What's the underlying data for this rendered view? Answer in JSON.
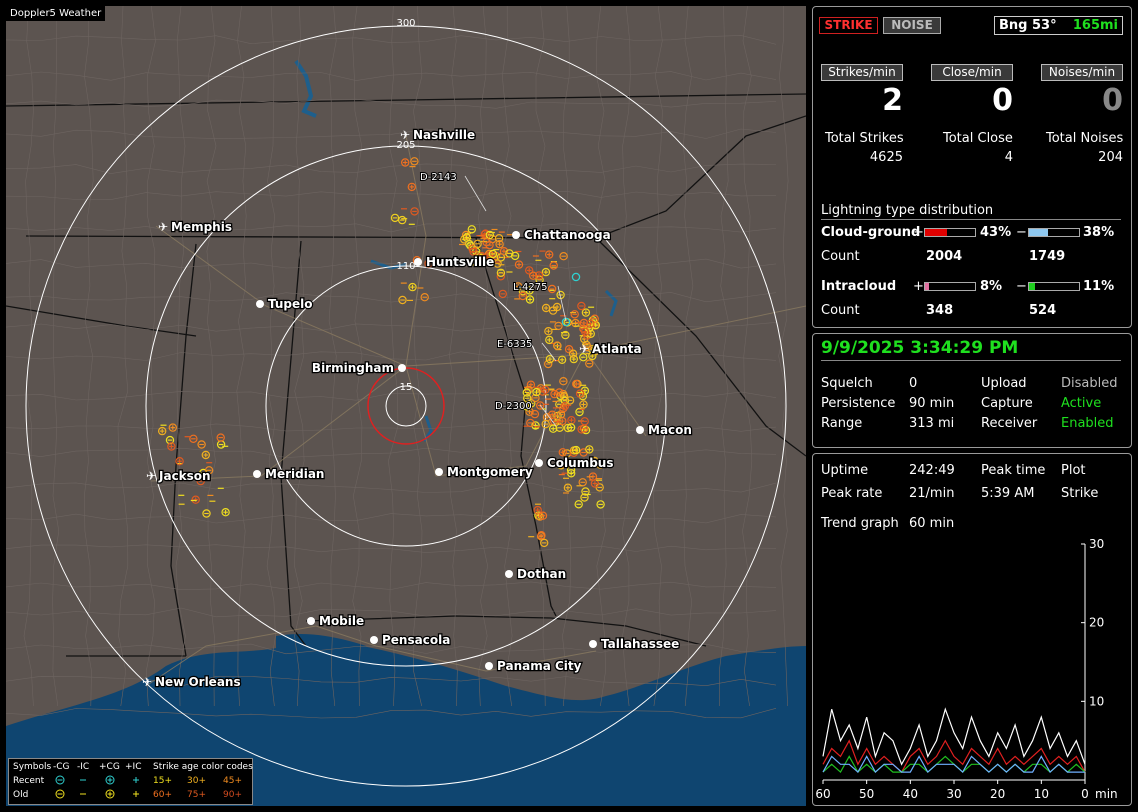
{
  "map": {
    "title": "Doppler5 Weather",
    "range_labels": [
      "300",
      "205",
      "110",
      "15"
    ],
    "cities": [
      {
        "name": "Nashville",
        "airport": true
      },
      {
        "name": "Memphis",
        "airport": true
      },
      {
        "name": "Chattanooga",
        "airport": false
      },
      {
        "name": "Huntsville",
        "airport": false
      },
      {
        "name": "Tupelo",
        "airport": false
      },
      {
        "name": "Birmingham",
        "airport": false
      },
      {
        "name": "Atlanta",
        "airport": true
      },
      {
        "name": "Macon",
        "airport": false
      },
      {
        "name": "Jackson",
        "airport": true
      },
      {
        "name": "Meridian",
        "airport": false
      },
      {
        "name": "Montgomery",
        "airport": false
      },
      {
        "name": "Columbus",
        "airport": false
      },
      {
        "name": "Dothan",
        "airport": false
      },
      {
        "name": "Mobile",
        "airport": false
      },
      {
        "name": "Pensacola",
        "airport": false
      },
      {
        "name": "Tallahassee",
        "airport": false
      },
      {
        "name": "Panama City",
        "airport": false
      },
      {
        "name": "New Orleans",
        "airport": true
      }
    ],
    "storm_labels": [
      "D-2143",
      "L-4275",
      "E-6335",
      "D-2300"
    ],
    "legend": {
      "symbols_label": "Symbols",
      "col_headers": [
        "-CG",
        "-IC",
        "+CG",
        "+IC"
      ],
      "age_label": "Strike age color codes",
      "recent_label": "Recent",
      "old_label": "Old",
      "recent_ages": [
        "15+",
        "30+",
        "45+"
      ],
      "old_ages": [
        "60+",
        "75+",
        "90+"
      ]
    }
  },
  "header": {
    "strike_tab": "STRIKE",
    "noise_tab": "NOISE",
    "bearing": "Bng 53°",
    "distance": "165mi"
  },
  "rates": {
    "strikes_label": "Strikes/min",
    "close_label": "Close/min",
    "noises_label": "Noises/min",
    "strikes_value": "2",
    "close_value": "0",
    "noises_value": "0"
  },
  "totals": {
    "strikes_label": "Total Strikes",
    "close_label": "Total Close",
    "noises_label": "Total Noises",
    "strikes_value": "4625",
    "close_value": "4",
    "noises_value": "204"
  },
  "distribution": {
    "title": "Lightning type distribution",
    "cg_label": "Cloud-ground",
    "ic_label": "Intracloud",
    "count_label": "Count",
    "plus": "+",
    "minus": "−",
    "cg_pos_pct": "43%",
    "cg_neg_pct": "38%",
    "ic_pos_pct": "8%",
    "ic_neg_pct": "11%",
    "cg_pos_count": "2004",
    "cg_neg_count": "1749",
    "ic_pos_count": "348",
    "ic_neg_count": "524",
    "cg_pos_fraction": 0.43,
    "cg_neg_fraction": 0.38,
    "ic_pos_fraction": 0.08,
    "ic_neg_fraction": 0.11
  },
  "status": {
    "datetime": "9/9/2025 3:34:29 PM",
    "squelch_label": "Squelch",
    "squelch_value": "0",
    "persistence_label": "Persistence",
    "persistence_value": "90 min",
    "range_label": "Range",
    "range_value": "313 mi",
    "upload_label": "Upload",
    "upload_value": "Disabled",
    "capture_label": "Capture",
    "capture_value": "Active",
    "receiver_label": "Receiver",
    "receiver_value": "Enabled"
  },
  "stats": {
    "uptime_label": "Uptime",
    "uptime_value": "242:49",
    "peak_time_label": "Peak time",
    "peak_time_value": "5:39 AM",
    "plot_label": "Plot",
    "plot_value": "Strike",
    "peak_rate_label": "Peak rate",
    "peak_rate_value": "21/min",
    "trend_label": "Trend graph",
    "trend_value": "60 min"
  },
  "chart_data": {
    "type": "line",
    "x_ticks": [
      "60",
      "50",
      "40",
      "30",
      "20",
      "10",
      "0"
    ],
    "x_unit": "min",
    "y_ticks": [
      "30",
      "20",
      "10"
    ],
    "ylim": [
      0,
      30
    ],
    "x": [
      60,
      58,
      56,
      54,
      52,
      50,
      48,
      46,
      44,
      42,
      40,
      38,
      36,
      34,
      32,
      30,
      28,
      26,
      24,
      22,
      20,
      18,
      16,
      14,
      12,
      10,
      8,
      6,
      4,
      2,
      0
    ],
    "series": [
      {
        "color": "#ffffff",
        "values": [
          3,
          9,
          5,
          7,
          4,
          8,
          3,
          6,
          5,
          2,
          4,
          7,
          3,
          5,
          9,
          6,
          4,
          8,
          5,
          3,
          6,
          4,
          7,
          3,
          5,
          8,
          4,
          6,
          3,
          5,
          2
        ]
      },
      {
        "color": "#e02020",
        "values": [
          2,
          4,
          3,
          5,
          2,
          4,
          2,
          3,
          2,
          1,
          3,
          4,
          2,
          3,
          5,
          3,
          2,
          4,
          3,
          2,
          4,
          2,
          3,
          2,
          3,
          4,
          2,
          3,
          2,
          3,
          1
        ]
      },
      {
        "color": "#20c020",
        "values": [
          1,
          2,
          1,
          3,
          1,
          2,
          1,
          2,
          1,
          1,
          2,
          2,
          1,
          2,
          3,
          2,
          1,
          2,
          2,
          1,
          2,
          1,
          2,
          1,
          2,
          2,
          1,
          2,
          1,
          2,
          1
        ]
      },
      {
        "color": "#6fb0ff",
        "values": [
          1,
          3,
          2,
          2,
          1,
          3,
          1,
          2,
          2,
          1,
          1,
          3,
          1,
          2,
          2,
          2,
          1,
          3,
          2,
          1,
          2,
          1,
          2,
          1,
          1,
          3,
          1,
          2,
          1,
          1,
          1
        ]
      }
    ]
  }
}
